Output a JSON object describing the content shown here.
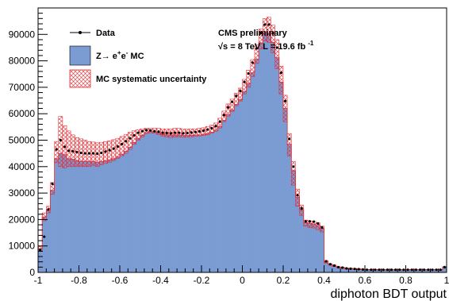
{
  "chart_data": {
    "type": "histogram",
    "xlabel": "diphoton BDT output",
    "xlim": [
      -1,
      1
    ],
    "ylim": [
      0,
      100000
    ],
    "x_ticks": [
      "-1",
      "-0.8",
      "-0.6",
      "-0.4",
      "-0.2",
      "0",
      "0.2",
      "0.4",
      "0.6",
      "0.8",
      "1"
    ],
    "y_ticks": [
      "0",
      "10000",
      "20000",
      "30000",
      "40000",
      "50000",
      "60000",
      "70000",
      "80000",
      "90000"
    ],
    "x_tick_values": [
      -1,
      -0.8,
      -0.6,
      -0.4,
      -0.2,
      0,
      0.2,
      0.4,
      0.6,
      0.8,
      1
    ],
    "y_tick_values": [
      0,
      10000,
      20000,
      30000,
      40000,
      50000,
      60000,
      70000,
      80000,
      90000
    ],
    "annotation": {
      "line1": "CMS preliminary",
      "line2_prefix": "√s = 8 TeV L = 19.6 fb",
      "line2_sup": "-1"
    },
    "legend": {
      "data_label": "Data",
      "mc_label_prefix": "Z→ e",
      "mc_label_sup1": "+",
      "mc_label_mid": "e",
      "mc_label_sup2": "-",
      "mc_label_suffix": " MC",
      "syst_label": "MC systematic uncertainty"
    },
    "colors": {
      "mc_fill": "#7b9bd3",
      "uncertainty": "#e8262c",
      "data": "#000000"
    },
    "bin_edges_start": -1,
    "bin_width": 0.02,
    "mc": [
      9000,
      21000,
      23500,
      31000,
      43000,
      45000,
      44500,
      43000,
      42800,
      42300,
      42000,
      42000,
      42000,
      41900,
      41600,
      41900,
      42200,
      42600,
      43000,
      43700,
      44700,
      45800,
      47300,
      49100,
      50700,
      51900,
      52900,
      53300,
      53200,
      52800,
      52200,
      52000,
      51900,
      52000,
      52000,
      51800,
      51800,
      51900,
      52000,
      52000,
      52200,
      52500,
      53000,
      53800,
      55100,
      57500,
      59600,
      61400,
      63500,
      65400,
      68400,
      71500,
      75500,
      80600,
      86800,
      90600,
      90300,
      87000,
      81200,
      72000,
      62000,
      48500,
      38500,
      28500,
      23700,
      18800,
      18500,
      18300,
      17800,
      16600,
      4000,
      3000,
      2500,
      2000,
      1800,
      1500,
      1400,
      1300,
      1200,
      1100,
      1000,
      1000,
      1000,
      1000,
      1000,
      1000,
      1000,
      1000,
      1000,
      1000,
      1000,
      1000,
      1000,
      1000,
      1000,
      1000,
      1000,
      1000,
      1000,
      2000
    ],
    "unc_low": [
      8200,
      19500,
      22500,
      29500,
      41500,
      40000,
      39500,
      40000,
      40000,
      40000,
      40000,
      40000,
      40000,
      40500,
      40000,
      40700,
      41200,
      41700,
      42300,
      43100,
      44100,
      45000,
      46500,
      48400,
      50000,
      51200,
      52500,
      52800,
      52600,
      52100,
      51600,
      51200,
      51000,
      51200,
      51200,
      51100,
      51200,
      51300,
      51500,
      51600,
      51800,
      52000,
      52700,
      53400,
      54600,
      57000,
      59100,
      60900,
      63000,
      64800,
      67500,
      70000,
      74000,
      79000,
      84500,
      87500,
      87000,
      83000,
      77000,
      67500,
      57000,
      44000,
      33000,
      25000,
      21500,
      17500,
      17000,
      16800,
      16200,
      15300,
      3500,
      2700,
      2200,
      1800,
      1600,
      1300,
      1200,
      1100,
      1000,
      950,
      900,
      900,
      900,
      900,
      900,
      900,
      900,
      900,
      900,
      900,
      900,
      900,
      900,
      900,
      900,
      900,
      900,
      900,
      900,
      1800
    ],
    "unc_high": [
      9800,
      22500,
      25000,
      34000,
      49500,
      59000,
      55500,
      53500,
      52000,
      51000,
      50500,
      50000,
      49500,
      49300,
      49000,
      49200,
      49500,
      49800,
      50200,
      50700,
      51400,
      52200,
      53000,
      53600,
      54000,
      54300,
      54500,
      54500,
      54500,
      54500,
      54300,
      54300,
      54300,
      54500,
      54500,
      54200,
      54200,
      54300,
      54300,
      54500,
      54700,
      55200,
      55700,
      56500,
      58300,
      61000,
      63700,
      65500,
      67800,
      69700,
      73000,
      76500,
      80500,
      86000,
      92000,
      96000,
      96500,
      93500,
      88000,
      78000,
      67000,
      52500,
      42000,
      31500,
      25500,
      19800,
      19500,
      19300,
      18800,
      17500,
      4500,
      3300,
      2800,
      2200,
      2000,
      1700,
      1600,
      1500,
      1400,
      1300,
      1100,
      1100,
      1100,
      1100,
      1100,
      1100,
      1100,
      1100,
      1100,
      1100,
      1100,
      1100,
      1100,
      1100,
      1100,
      1100,
      1100,
      1100,
      1100,
      2200
    ],
    "data_points": [
      8500,
      13500,
      23800,
      33500,
      46500,
      50000,
      47500,
      46000,
      45800,
      45500,
      45200,
      45000,
      45000,
      45000,
      44900,
      45200,
      45700,
      46200,
      46800,
      47600,
      48500,
      49600,
      50700,
      51800,
      52800,
      53400,
      53800,
      53700,
      53400,
      53200,
      52800,
      52700,
      52600,
      52800,
      52800,
      52600,
      52700,
      52900,
      53100,
      53300,
      53600,
      54000,
      54500,
      55300,
      57000,
      59500,
      62400,
      64500,
      66700,
      68600,
      72000,
      75200,
      79300,
      84700,
      90500,
      93700,
      93700,
      90500,
      85000,
      75500,
      64800,
      50500,
      40000,
      29200,
      24200,
      19300,
      19300,
      19200,
      18500,
      17000,
      4200,
      3100,
      2600,
      2000,
      1800,
      1500,
      1400,
      1300,
      1200,
      1100,
      1000,
      1000,
      1000,
      1000,
      1000,
      1000,
      1000,
      1000,
      1000,
      1000,
      1000,
      1000,
      1000,
      1000,
      1000,
      1000,
      1000,
      1000,
      1000,
      2000
    ]
  }
}
